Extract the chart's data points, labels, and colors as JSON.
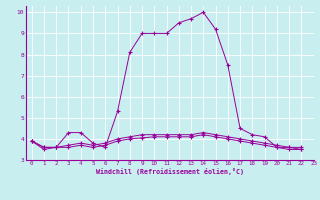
{
  "xlabel": "Windchill (Refroidissement éolien,°C)",
  "bg_color": "#c8eef0",
  "line_color": "#990099",
  "grid_color": "#ffffff",
  "xlim": [
    -0.5,
    23
  ],
  "ylim": [
    3,
    10.3
  ],
  "yticks": [
    3,
    4,
    5,
    6,
    7,
    8,
    9,
    10
  ],
  "xticks": [
    0,
    1,
    2,
    3,
    4,
    5,
    6,
    7,
    8,
    9,
    10,
    11,
    12,
    13,
    14,
    15,
    16,
    17,
    18,
    19,
    20,
    21,
    22,
    23
  ],
  "series": [
    [
      3.9,
      3.6,
      3.6,
      4.3,
      4.3,
      3.8,
      3.6,
      5.3,
      8.1,
      9.0,
      9.0,
      9.0,
      9.5,
      9.7,
      10.0,
      9.2,
      7.5,
      4.5,
      4.2,
      4.1,
      3.6,
      3.5,
      3.5
    ],
    [
      3.9,
      3.5,
      3.6,
      3.6,
      3.7,
      3.6,
      3.7,
      3.9,
      4.0,
      4.05,
      4.1,
      4.1,
      4.1,
      4.1,
      4.2,
      4.1,
      4.0,
      3.9,
      3.8,
      3.7,
      3.6,
      3.6,
      3.5
    ],
    [
      3.9,
      3.6,
      3.6,
      3.7,
      3.8,
      3.7,
      3.8,
      4.0,
      4.1,
      4.2,
      4.2,
      4.2,
      4.2,
      4.2,
      4.3,
      4.2,
      4.1,
      4.0,
      3.9,
      3.8,
      3.7,
      3.6,
      3.6
    ]
  ]
}
